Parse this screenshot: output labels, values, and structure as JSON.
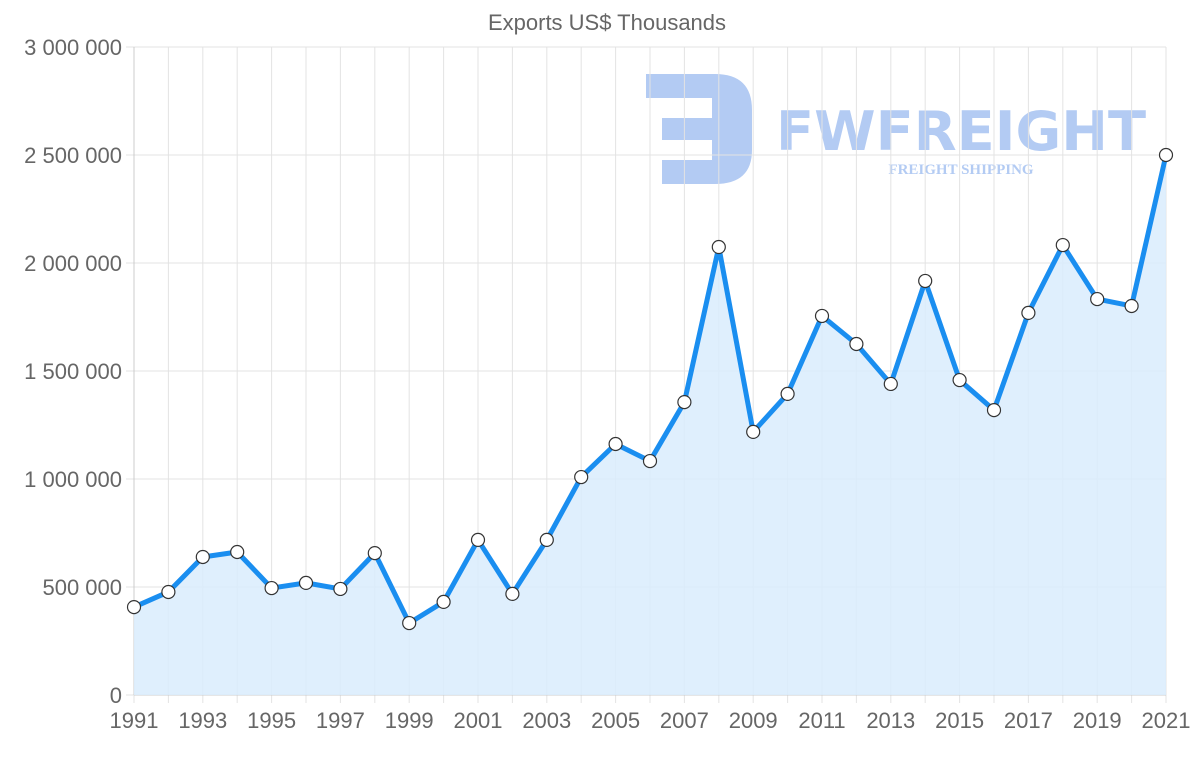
{
  "chart_data": {
    "type": "area",
    "title": "Exports US$ Thousands",
    "xlabel": "",
    "ylabel": "",
    "ylim": [
      0,
      3000000
    ],
    "grid": true,
    "legend": null,
    "categories": [
      "1991",
      "1992",
      "1993",
      "1994",
      "1995",
      "1996",
      "1997",
      "1998",
      "1999",
      "2000",
      "2001",
      "2002",
      "2003",
      "2004",
      "2005",
      "2006",
      "2007",
      "2008",
      "2009",
      "2010",
      "2011",
      "2012",
      "2013",
      "2014",
      "2015",
      "2016",
      "2017",
      "2018",
      "2019",
      "2020",
      "2021"
    ],
    "series": [
      {
        "name": "Exports US$ Thousands",
        "values": [
          407000,
          477000,
          639000,
          662000,
          495000,
          519000,
          491000,
          657000,
          333000,
          431000,
          718000,
          468000,
          718000,
          1009000,
          1162000,
          1083000,
          1356000,
          2074000,
          1218000,
          1394000,
          1755000,
          1625000,
          1440000,
          1917000,
          1458000,
          1319000,
          1769000,
          2083000,
          1833000,
          1801000,
          2500000
        ]
      }
    ],
    "y_ticks": [
      0,
      500000,
      1000000,
      1500000,
      2000000,
      2500000,
      3000000
    ],
    "y_tick_labels": [
      "0",
      "500 000",
      "1 000 000",
      "1 500 000",
      "2 000 000",
      "2 500 000",
      "3 000 000"
    ],
    "x_tick_labels": [
      "1991",
      "1993",
      "1995",
      "1997",
      "1999",
      "2001",
      "2003",
      "2005",
      "2007",
      "2009",
      "2011",
      "2013",
      "2015",
      "2017",
      "2019",
      "2021"
    ]
  },
  "watermark": {
    "brand": "FWFREIGHT",
    "tagline": "FREIGHT SHIPPING",
    "icon": "fw-logo-icon"
  },
  "colors": {
    "line": "#1a8ef0",
    "fill": "#d9ecfd",
    "point_fill": "#ffffff",
    "point_stroke": "#333333",
    "grid": "#e3e3e3",
    "text": "#666666",
    "watermark": "#b3cbf3"
  }
}
